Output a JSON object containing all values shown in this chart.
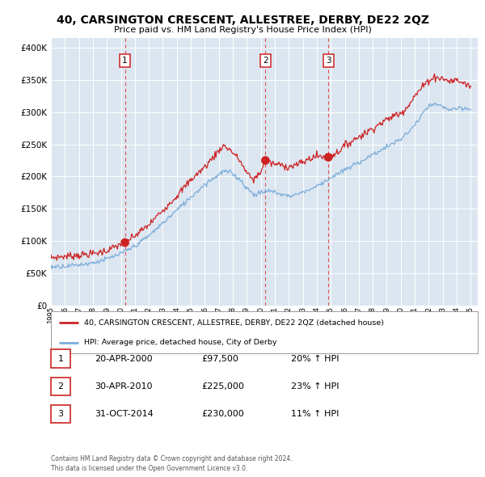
{
  "title": "40, CARSINGTON CRESCENT, ALLESTREE, DERBY, DE22 2QZ",
  "subtitle": "Price paid vs. HM Land Registry's House Price Index (HPI)",
  "background_color": "#ffffff",
  "plot_bg_color": "#dce6f0",
  "grid_color": "#ffffff",
  "red_line_color": "#cc2222",
  "blue_line_color": "#7aacda",
  "ylabel_vals": [
    0,
    50000,
    100000,
    150000,
    200000,
    250000,
    300000,
    350000,
    400000
  ],
  "ylabel_labels": [
    "£0",
    "£50K",
    "£100K",
    "£150K",
    "£200K",
    "£250K",
    "£300K",
    "£350K",
    "£400K"
  ],
  "xmin": 1995.0,
  "xmax": 2025.5,
  "ymin": 0,
  "ymax": 415000,
  "sale_dates": [
    2000.29,
    2010.33,
    2014.83
  ],
  "sale_prices": [
    97500,
    225000,
    230000
  ],
  "sale_labels": [
    "1",
    "2",
    "3"
  ],
  "vline_color": "#e05050",
  "legend_red_label": "40, CARSINGTON CRESCENT, ALLESTREE, DERBY, DE22 2QZ (detached house)",
  "legend_blue_label": "HPI: Average price, detached house, City of Derby",
  "table_rows": [
    [
      "1",
      "20-APR-2000",
      "£97,500",
      "20% ↑ HPI"
    ],
    [
      "2",
      "30-APR-2010",
      "£225,000",
      "23% ↑ HPI"
    ],
    [
      "3",
      "31-OCT-2014",
      "£230,000",
      "11% ↑ HPI"
    ]
  ],
  "footer_text": "Contains HM Land Registry data © Crown copyright and database right 2024.\nThis data is licensed under the Open Government Licence v3.0.",
  "xtick_years": [
    1995,
    1996,
    1997,
    1998,
    1999,
    2000,
    2001,
    2002,
    2003,
    2004,
    2005,
    2006,
    2007,
    2008,
    2009,
    2010,
    2011,
    2012,
    2013,
    2014,
    2015,
    2016,
    2017,
    2018,
    2019,
    2020,
    2021,
    2022,
    2023,
    2024,
    2025
  ]
}
